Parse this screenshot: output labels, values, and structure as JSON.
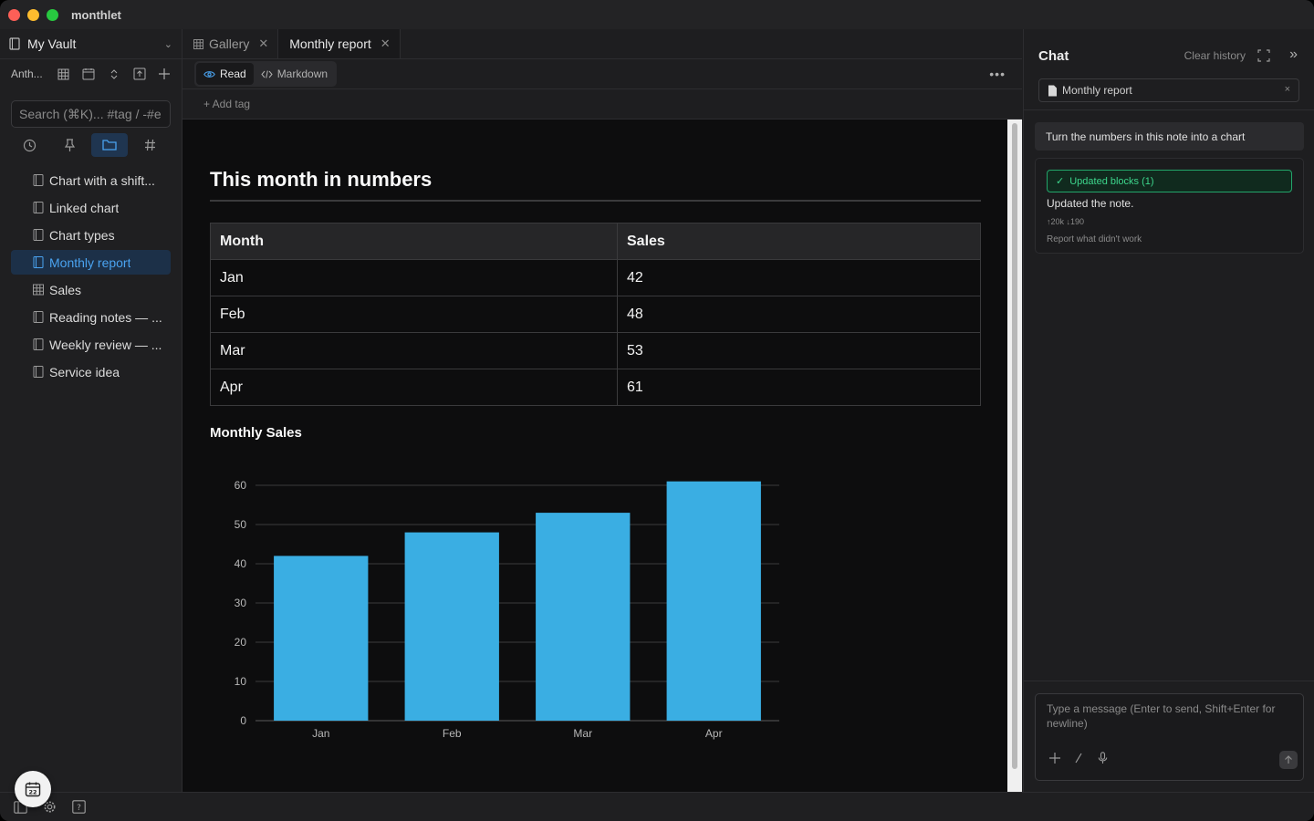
{
  "app": {
    "title": "monthlet"
  },
  "sidebar": {
    "vault_name": "My Vault",
    "toolbar_label": "Anth...",
    "search_placeholder": "Search (⌘K)... #tag / -#e",
    "items": [
      {
        "label": "Chart with a shift...",
        "icon": "document-icon",
        "active": false
      },
      {
        "label": "Linked chart",
        "icon": "document-icon",
        "active": false
      },
      {
        "label": "Chart types",
        "icon": "document-icon",
        "active": false
      },
      {
        "label": "Monthly report",
        "icon": "document-icon",
        "active": true
      },
      {
        "label": "Sales",
        "icon": "table-icon",
        "active": false
      },
      {
        "label": "Reading notes — ...",
        "icon": "document-icon",
        "active": false
      },
      {
        "label": "Weekly review — ...",
        "icon": "document-icon",
        "active": false
      },
      {
        "label": "Service idea",
        "icon": "document-icon",
        "active": false
      }
    ]
  },
  "tabs": [
    {
      "label": "Gallery",
      "active": false
    },
    {
      "label": "Monthly report",
      "active": true
    }
  ],
  "modes": {
    "read": "Read",
    "markdown": "Markdown"
  },
  "tags": {
    "add_label": "+ Add tag"
  },
  "document": {
    "title": "This month in numbers",
    "table": {
      "headers": [
        "Month",
        "Sales"
      ],
      "rows": [
        [
          "Jan",
          "42"
        ],
        [
          "Feb",
          "48"
        ],
        [
          "Mar",
          "53"
        ],
        [
          "Apr",
          "61"
        ]
      ]
    }
  },
  "chart_data": {
    "type": "bar",
    "title": "Monthly Sales",
    "categories": [
      "Jan",
      "Feb",
      "Mar",
      "Apr"
    ],
    "values": [
      42,
      48,
      53,
      61
    ],
    "yticks": [
      0,
      10,
      20,
      30,
      40,
      50,
      60
    ],
    "ylim": [
      0,
      60
    ],
    "xlabel": "",
    "ylabel": "",
    "grid": true,
    "color": "#3aaee3"
  },
  "chat": {
    "title": "Chat",
    "clear_label": "Clear history",
    "context_chip": "Monthly report",
    "user_message": "Turn the numbers in this note into a chart",
    "reply": {
      "badge": "Updated blocks (1)",
      "text": "Updated the note.",
      "tokens": "↑20k ↓190",
      "report": "Report what didn't work"
    },
    "composer_placeholder": "Type a message (Enter to send, Shift+Enter for newline)"
  },
  "colors": {
    "accent": "#4aa3f0",
    "success": "#3dd68c",
    "bar": "#3aaee3"
  }
}
